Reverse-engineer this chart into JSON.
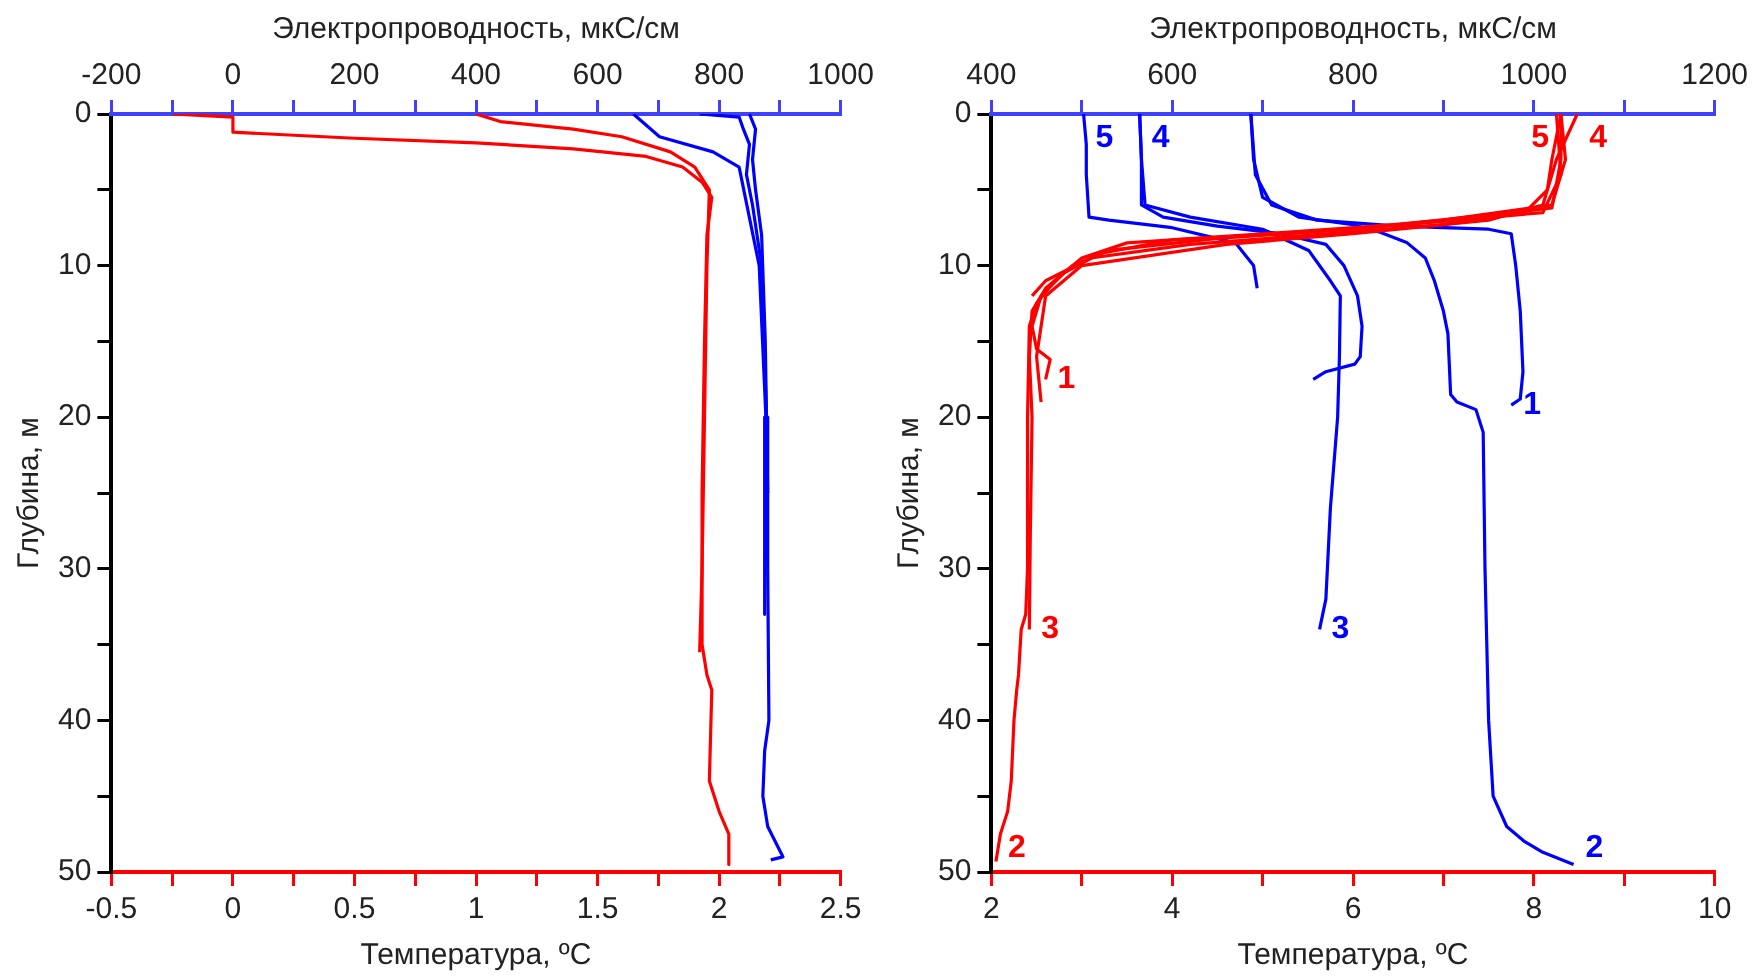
{
  "chart_data": [
    {
      "type": "line",
      "xlabel": "Температура, ºC",
      "x2label": "Электропроводность, мкС/см",
      "ylabel": "Глубина, м",
      "xlim": [
        -0.5,
        2.5
      ],
      "xticks": [
        -0.5,
        {
          "value": -0.25,
          "label": null
        },
        0,
        {
          "value": 0.25,
          "label": null
        },
        0.5,
        {
          "value": 0.75,
          "label": null
        },
        1,
        {
          "value": 1.25,
          "label": null
        },
        1.5,
        {
          "value": 1.75,
          "label": null
        },
        2,
        {
          "value": 2.25,
          "label": null
        },
        2.5
      ],
      "x2lim": [
        -200,
        1000
      ],
      "x2ticks": [
        -200,
        {
          "value": -100,
          "label": null
        },
        0,
        {
          "value": 100,
          "label": null
        },
        200,
        {
          "value": 300,
          "label": null
        },
        400,
        {
          "value": 500,
          "label": null
        },
        600,
        {
          "value": 700,
          "label": null
        },
        800,
        {
          "value": 900,
          "label": null
        },
        1000
      ],
      "ylim": [
        50,
        0
      ],
      "yticks": [
        0,
        {
          "value": 5,
          "label": null
        },
        10,
        {
          "value": 15,
          "label": null
        },
        20,
        {
          "value": 25,
          "label": null
        },
        30,
        {
          "value": 35,
          "label": null
        },
        40,
        {
          "value": 45,
          "label": null
        },
        50
      ],
      "grid": false,
      "legend": false,
      "marker": "none",
      "line_style": "solid",
      "series": [
        {
          "color": "#ff0000",
          "x": [
            -0.25,
            0,
            0,
            0.5,
            1.0,
            1.4,
            1.7,
            1.85,
            1.93,
            1.97,
            1.95,
            1.94,
            1.93,
            1.93,
            1.95,
            1.97,
            1.96,
            2.0,
            2.04,
            2.04
          ],
          "values": [
            0,
            0.2,
            1.2,
            1.6,
            1.9,
            2.3,
            2.8,
            3.5,
            4.5,
            5.5,
            8,
            15,
            25,
            35,
            37,
            38,
            44,
            46,
            47.5,
            49.5
          ]
        },
        {
          "color": "#ff0000",
          "x": [
            1.0,
            1.1,
            1.4,
            1.6,
            1.8,
            1.9,
            1.96,
            1.95,
            1.94,
            1.93,
            1.92
          ],
          "values": [
            0,
            0.5,
            1,
            1.5,
            2.5,
            3.5,
            5,
            10,
            20,
            30,
            35.5
          ]
        },
        {
          "color": "#0000ff",
          "axis": "x2",
          "x": [
            659,
            702,
            790,
            833,
            866,
            877,
            875
          ],
          "values": [
            0,
            1.5,
            2.5,
            3.5,
            10,
            20,
            33
          ]
        },
        {
          "color": "#0000ff",
          "axis": "x2",
          "x": [
            768,
            833,
            840,
            850,
            845,
            855,
            870,
            878,
            880,
            882,
            875,
            872,
            880,
            905,
            885
          ],
          "values": [
            0,
            0.2,
            1,
            2,
            4,
            6,
            10,
            20,
            30,
            40,
            42,
            45,
            47,
            49,
            49.2
          ]
        },
        {
          "color": "#0000ff",
          "axis": "x2",
          "x": [
            850,
            860,
            855,
            860,
            870,
            876,
            880
          ],
          "values": [
            0,
            1,
            3,
            5,
            8,
            15,
            25
          ]
        }
      ]
    },
    {
      "type": "line",
      "xlabel": "Температура, ºC",
      "x2label": "Электропроводность, мкС/см",
      "ylabel": "Глубина, м",
      "xlim": [
        2,
        10
      ],
      "xticks": [
        2,
        {
          "value": 3,
          "label": null
        },
        4,
        {
          "value": 5,
          "label": null
        },
        6,
        {
          "value": 7,
          "label": null
        },
        8,
        {
          "value": 9,
          "label": null
        },
        10
      ],
      "x2lim": [
        400,
        1200
      ],
      "x2ticks": [
        400,
        {
          "value": 500,
          "label": null
        },
        600,
        {
          "value": 700,
          "label": null
        },
        800,
        {
          "value": 900,
          "label": null
        },
        1000,
        {
          "value": 1100,
          "label": null
        },
        1200
      ],
      "ylim": [
        50,
        0
      ],
      "yticks": [
        0,
        {
          "value": 5,
          "label": null
        },
        10,
        {
          "value": 15,
          "label": null
        },
        20,
        {
          "value": 25,
          "label": null
        },
        30,
        {
          "value": 35,
          "label": null
        },
        40,
        {
          "value": 45,
          "label": null
        },
        50
      ],
      "grid": false,
      "legend": false,
      "marker": "none",
      "line_style": "solid",
      "series": [
        {
          "name": "1",
          "color": "#ff0000",
          "x": [
            8.3,
            8.35,
            8.2,
            7,
            5.5,
            4,
            3.2,
            2.8,
            2.55,
            2.45,
            2.5,
            2.65,
            2.6
          ],
          "values": [
            0,
            3,
            6,
            7,
            7.8,
            8.3,
            9.2,
            10.5,
            12,
            14,
            15.5,
            16.2,
            17.5
          ]
        },
        {
          "name": "2",
          "color": "#ff0000",
          "x": [
            8.3,
            8.3,
            8.2,
            6.5,
            5,
            3.5,
            3,
            2.7,
            2.5,
            2.42,
            2.4,
            2.4,
            2.38,
            2.33,
            2.3,
            2.28,
            2.25,
            2.22,
            2.18,
            2.1,
            2.05
          ],
          "values": [
            0,
            3,
            6.2,
            7.3,
            7.9,
            8.5,
            9.5,
            11,
            12.5,
            14,
            20,
            30,
            33,
            34,
            37,
            38,
            40,
            44,
            46,
            47.5,
            49.3
          ]
        },
        {
          "name": "3",
          "color": "#ff0000",
          "x": [
            8.25,
            8.3,
            8.1,
            6,
            4.5,
            3.3,
            2.9,
            2.6,
            2.45,
            2.42,
            2.45,
            2.43,
            2.42
          ],
          "values": [
            0,
            4,
            6.5,
            7.6,
            8.2,
            9,
            10,
            11.5,
            13,
            16,
            20,
            28,
            34
          ]
        },
        {
          "name": "4",
          "color": "#ff0000",
          "x": [
            2.55,
            2.5,
            2.6,
            3,
            4.6,
            6,
            7.5,
            8.1,
            8.25,
            8.48
          ],
          "values": [
            19,
            16,
            12,
            10,
            8.6,
            7.9,
            7,
            6,
            3,
            0
          ]
        },
        {
          "name": "5",
          "color": "#ff0000",
          "x": [
            2.45,
            2.6,
            3.1,
            4.2,
            5.5,
            7,
            7.9,
            8.15,
            8.2,
            8.3
          ],
          "values": [
            12,
            11,
            9.5,
            8.6,
            8,
            7.3,
            6.5,
            5,
            3,
            0
          ]
        },
        {
          "name": "1",
          "color": "#0000ff",
          "axis": "x2",
          "x": [
            687,
            692,
            710,
            760,
            850,
            950,
            975,
            980,
            985,
            988,
            985,
            975
          ],
          "values": [
            0,
            4,
            6,
            7,
            7.4,
            7.6,
            7.9,
            10,
            13,
            17,
            18.8,
            19.2
          ]
        },
        {
          "name": "2",
          "color": "#0000ff",
          "axis": "x2",
          "x": [
            687,
            690,
            700,
            740,
            800,
            830,
            860,
            880,
            890,
            900,
            905,
            908,
            915,
            936,
            944,
            946,
            950,
            955,
            970,
            990,
            1010,
            1044
          ],
          "values": [
            0,
            3,
            5.5,
            6.8,
            7.3,
            7.8,
            8.5,
            9.5,
            11,
            13,
            14.5,
            18.5,
            19,
            19.5,
            21,
            30,
            40,
            45,
            47,
            48,
            48.7,
            49.5
          ]
        },
        {
          "name": "3",
          "color": "#0000ff",
          "axis": "x2",
          "x": [
            564,
            566,
            570,
            620,
            700,
            751,
            775,
            786,
            785,
            783,
            775,
            770,
            763
          ],
          "values": [
            0,
            3,
            6,
            6.8,
            7.6,
            9,
            11,
            12,
            16,
            20,
            26,
            32,
            34
          ]
        },
        {
          "name": "4",
          "color": "#0000ff",
          "axis": "x2",
          "x": [
            756,
            770,
            802,
            808,
            810,
            805,
            790,
            770,
            720,
            650,
            590,
            566,
            566,
            564
          ],
          "values": [
            17.5,
            17,
            16.5,
            16,
            14,
            12,
            10,
            8.6,
            7.9,
            7.4,
            6.8,
            6,
            3,
            0
          ]
        },
        {
          "name": "5",
          "color": "#0000ff",
          "axis": "x2",
          "x": [
            694,
            690,
            670,
            600,
            530,
            508,
            505,
            505,
            502
          ],
          "values": [
            11.5,
            10,
            8.5,
            7.5,
            7,
            6.8,
            4,
            2,
            0
          ]
        }
      ]
    }
  ]
}
